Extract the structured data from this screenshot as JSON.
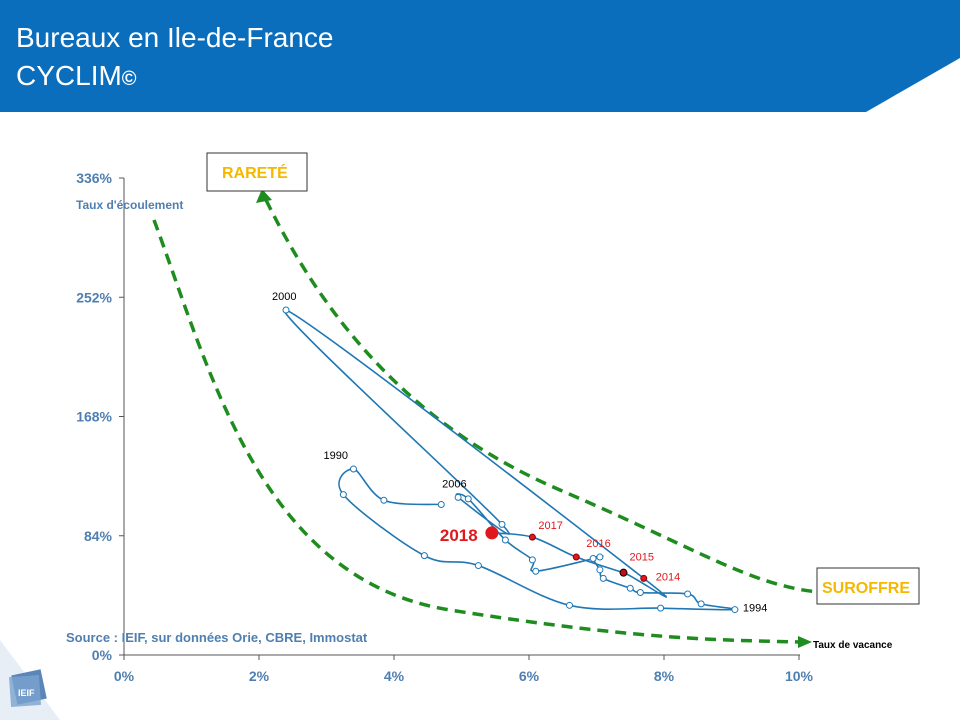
{
  "header": {
    "title_line1": "Bureaux en Ile-de-France",
    "title_line2": "CYCLIM",
    "copyright": "©",
    "color": "#0a6ebd"
  },
  "source": "Source : IEIF, sur données Orie, CBRE, Immostat",
  "logo": {
    "text": "IEIF"
  },
  "chart_data": {
    "type": "scatter",
    "title": "",
    "xlabel": "Taux de vacance",
    "ylabel": "Taux d'écoulement",
    "xlim": [
      0,
      10
    ],
    "ylim": [
      0,
      336
    ],
    "xticks": [
      0,
      2,
      4,
      6,
      8,
      10
    ],
    "xtick_labels": [
      "0%",
      "2%",
      "4%",
      "6%",
      "8%",
      "10%"
    ],
    "yticks": [
      0,
      84,
      168,
      252,
      336
    ],
    "ytick_labels": [
      "0%",
      "84%",
      "168%",
      "252%",
      "336%"
    ],
    "grid": false,
    "series_color": "#1f77b4",
    "series": [
      {
        "points": [
          {
            "x": 4.7,
            "y": 106
          },
          {
            "x": 3.85,
            "y": 109
          },
          {
            "x": 3.4,
            "y": 131,
            "label": "1990"
          },
          {
            "x": 3.25,
            "y": 113
          },
          {
            "x": 4.45,
            "y": 70
          },
          {
            "x": 5.25,
            "y": 63
          },
          {
            "x": 6.6,
            "y": 35
          },
          {
            "x": 7.95,
            "y": 33
          },
          {
            "x": 9.05,
            "y": 32,
            "label": "1994"
          },
          {
            "x": 8.55,
            "y": 36
          },
          {
            "x": 8.35,
            "y": 43
          },
          {
            "x": 7.65,
            "y": 44
          },
          {
            "x": 7.5,
            "y": 47
          },
          {
            "x": 7.1,
            "y": 54
          },
          {
            "x": 7.05,
            "y": 60
          },
          {
            "x": 6.95,
            "y": 68
          },
          {
            "x": 7.05,
            "y": 69
          },
          {
            "x": 6.1,
            "y": 59
          },
          {
            "x": 6.05,
            "y": 67
          },
          {
            "x": 5.65,
            "y": 81
          },
          {
            "x": 5.1,
            "y": 110
          },
          {
            "x": 4.95,
            "y": 111,
            "label": "2006"
          },
          {
            "x": 5.6,
            "y": 92
          },
          {
            "x": 2.4,
            "y": 243,
            "label": "2000"
          },
          {
            "x": 7.7,
            "y": 54,
            "label": "2014",
            "highlight": true
          },
          {
            "x": 7.4,
            "y": 58,
            "label": "2015",
            "highlight": true
          },
          {
            "x": 6.7,
            "y": 69,
            "label": "2016",
            "highlight": true
          },
          {
            "x": 6.05,
            "y": 83,
            "label": "2017",
            "highlight": true
          },
          {
            "x": 5.45,
            "y": 86,
            "label": "2018",
            "highlight": true,
            "latest": true
          }
        ]
      }
    ],
    "annotations": [
      {
        "text": "RARETÉ",
        "color": "#f5b800"
      },
      {
        "text": "SUROFFRE",
        "color": "#f5b800"
      }
    ],
    "label_colors": {
      "normal": "#000000",
      "highlight": "#e0181d"
    }
  }
}
